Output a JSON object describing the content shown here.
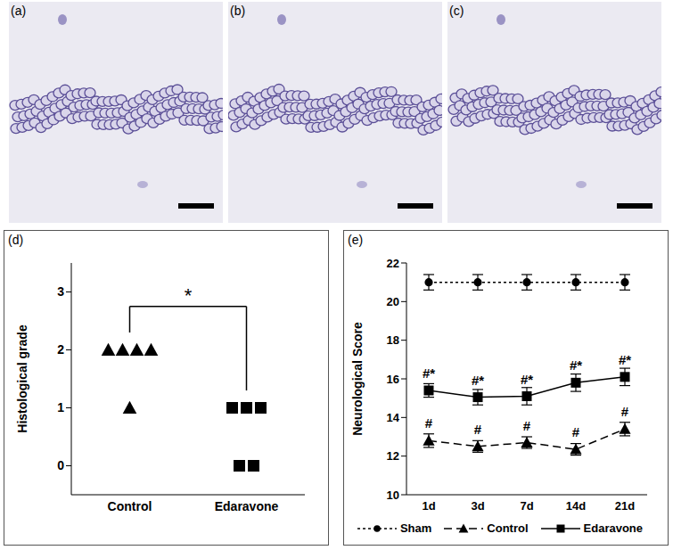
{
  "images": [
    {
      "label": "(a)"
    },
    {
      "label": "(b)"
    },
    {
      "label": "(c)"
    }
  ],
  "chart_data": [
    {
      "type": "scatter",
      "panel_label": "(d)",
      "y_label": "Histological grade",
      "ylim": [
        -0.5,
        3.5
      ],
      "yticks": [
        0,
        1,
        2,
        3
      ],
      "groups": [
        {
          "category": "Control",
          "marker": "triangle",
          "color": "#000000",
          "values": [
            2,
            2,
            2,
            2,
            1
          ]
        },
        {
          "category": "Edaravone",
          "marker": "square",
          "color": "#000000",
          "values": [
            1,
            1,
            1,
            0,
            0
          ]
        }
      ],
      "annotations": [
        {
          "text": "*",
          "between": [
            "Control",
            "Edaravone"
          ]
        }
      ]
    },
    {
      "type": "line",
      "panel_label": "(e)",
      "y_label": "Neurological Score",
      "categories": [
        "1d",
        "3d",
        "7d",
        "14d",
        "21d"
      ],
      "ylim": [
        10,
        22
      ],
      "yticks": [
        10,
        12,
        14,
        16,
        18,
        20,
        22
      ],
      "legend": "bottom",
      "series": [
        {
          "name": "Sham",
          "color": "#000000",
          "line_style": "dotted",
          "marker": "circle",
          "values": [
            21,
            21,
            21,
            21,
            21
          ],
          "error": [
            0.4,
            0.4,
            0.4,
            0.4,
            0.4
          ]
        },
        {
          "name": "Control",
          "color": "#000000",
          "line_style": "dashed",
          "marker": "triangle",
          "values": [
            12.8,
            12.5,
            12.7,
            12.35,
            13.4
          ],
          "error": [
            0.35,
            0.3,
            0.3,
            0.3,
            0.35
          ],
          "annotations": [
            "#",
            "#",
            "#",
            "#",
            "#"
          ]
        },
        {
          "name": "Edaravone",
          "color": "#000000",
          "line_style": "solid",
          "marker": "square",
          "values": [
            15.4,
            15.05,
            15.1,
            15.8,
            16.1
          ],
          "error": [
            0.35,
            0.4,
            0.45,
            0.45,
            0.45
          ],
          "annotations": [
            "#*",
            "#*",
            "#*",
            "#*",
            "#*"
          ]
        }
      ]
    }
  ]
}
